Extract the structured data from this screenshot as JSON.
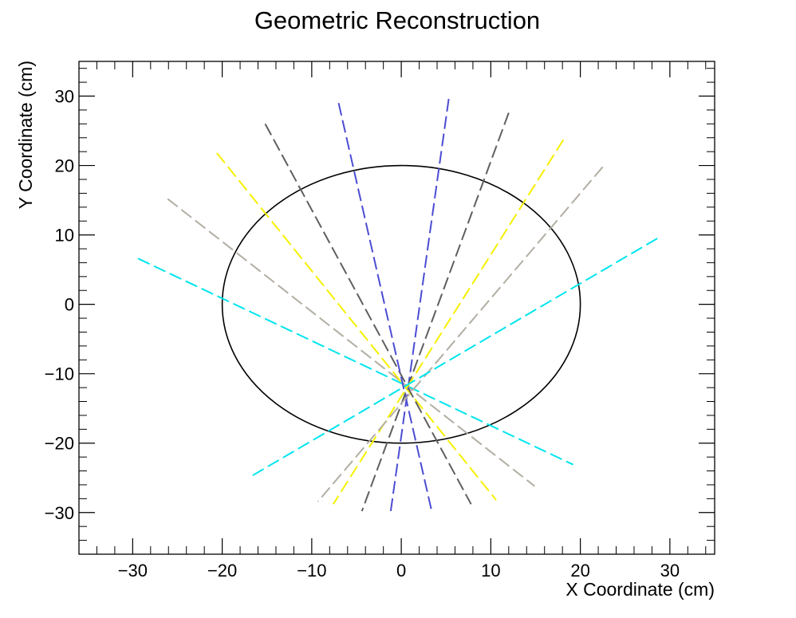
{
  "chart_data": {
    "type": "line",
    "title": "Geometric Reconstruction",
    "xlabel": "X Coordinate (cm)",
    "ylabel": "Y Coordinate (cm)",
    "xlim": [
      -36,
      35
    ],
    "ylim": [
      -36,
      35
    ],
    "xticks": [
      -30,
      -20,
      -10,
      0,
      10,
      20,
      30
    ],
    "yticks": [
      -30,
      -20,
      -10,
      0,
      10,
      20,
      30
    ],
    "xtick_labels": [
      "−30",
      "−20",
      "−10",
      "0",
      "10",
      "20",
      "30"
    ],
    "ytick_labels": [
      "−30",
      "−20",
      "−10",
      "0",
      "10",
      "20",
      "30"
    ],
    "grid": false,
    "circle": {
      "center": [
        0,
        0
      ],
      "radius_x": 20,
      "radius_y": 20,
      "color": "#000000"
    },
    "series": [
      {
        "color": "#00e5ee",
        "x": [
          -29.4,
          19.2
        ],
        "y": [
          6.6,
          -23.1
        ]
      },
      {
        "color": "#b3aea4",
        "x": [
          -26.1,
          14.9
        ],
        "y": [
          15.2,
          -26.2
        ]
      },
      {
        "color": "#f5f000",
        "x": [
          -20.6,
          10.6
        ],
        "y": [
          21.8,
          -28.2
        ]
      },
      {
        "color": "#5f5f5f",
        "x": [
          -15.2,
          7.8
        ],
        "y": [
          26.0,
          -28.8
        ]
      },
      {
        "color": "#4c4cd3",
        "x": [
          -7.0,
          3.4
        ],
        "y": [
          29.0,
          -29.8
        ]
      },
      {
        "color": "#4c4cd3",
        "x": [
          5.3,
          -1.2
        ],
        "y": [
          29.6,
          -30.0
        ]
      },
      {
        "color": "#5f5f5f",
        "x": [
          12.0,
          -4.4
        ],
        "y": [
          27.6,
          -29.8
        ]
      },
      {
        "color": "#f5f000",
        "x": [
          18.1,
          -7.6
        ],
        "y": [
          23.7,
          -28.8
        ]
      },
      {
        "color": "#b3aea4",
        "x": [
          22.5,
          -9.3
        ],
        "y": [
          19.8,
          -28.4
        ]
      },
      {
        "color": "#00e5ee",
        "x": [
          28.6,
          -16.8
        ],
        "y": [
          9.5,
          -24.8
        ]
      }
    ]
  }
}
